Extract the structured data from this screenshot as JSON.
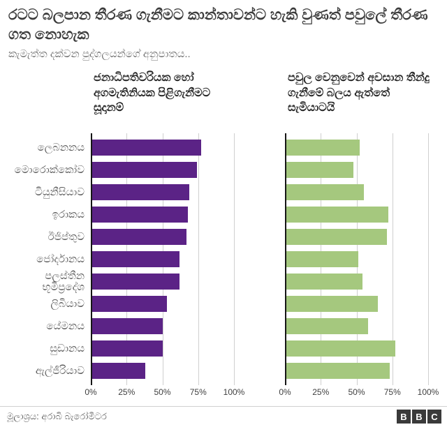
{
  "title": "රටට බලපාන තීරණ ගැනීමට කාන්තාවන්ට හැකි වුණත් පවුලේ තීරණ ගත නොහැක",
  "subtitle": "කැමැත්ත දක්වන පුද්ගලයන්ගේ අනුපාතය..",
  "footer": {
    "source": "මූලාශ්‍රය: අරාබි බැරෝමීටර",
    "logo_letters": [
      "B",
      "B",
      "C"
    ]
  },
  "chart_data": {
    "type": "bar",
    "orientation": "horizontal",
    "grid": true,
    "legend_position": "none",
    "xlim": [
      0,
      100
    ],
    "categories": [
      "ලෙබනනය",
      "මොරොක්කෝව",
      "ටියුනීසියාව",
      "ඉරාකය",
      "ඊජිප්තුව",
      "ජෝර්දානය",
      "පලස්තීන භූමිප්‍රදේශ",
      "ලිබියාව",
      "යේමනය",
      "සුඩානය",
      "ඇල්ජීරියාව"
    ],
    "series": [
      {
        "name": "ජනාධිපතිවරියක හෝ අගමැතිනියක පිළිගැනීමට සූදානම්",
        "color": "#5b2386",
        "values": [
          77,
          74,
          69,
          68,
          67,
          62,
          62,
          53,
          50,
          50,
          38
        ]
      },
      {
        "name": "පවුල වෙනුවෙන් අවසාන තීන්දු ගැනීමේ බලය ඇත්තේ සැමියාටයි",
        "color": "#a5c87e",
        "values": [
          52,
          48,
          55,
          72,
          71,
          51,
          54,
          65,
          58,
          77,
          73
        ]
      }
    ],
    "gridlines": [
      25,
      50,
      75,
      100
    ],
    "ticks": [
      {
        "pct": 0,
        "label": "0%"
      },
      {
        "pct": 25,
        "label": "25%"
      },
      {
        "pct": 50,
        "label": "50%"
      },
      {
        "pct": 75,
        "label": "75%"
      },
      {
        "pct": 100,
        "label": "100%"
      }
    ]
  }
}
